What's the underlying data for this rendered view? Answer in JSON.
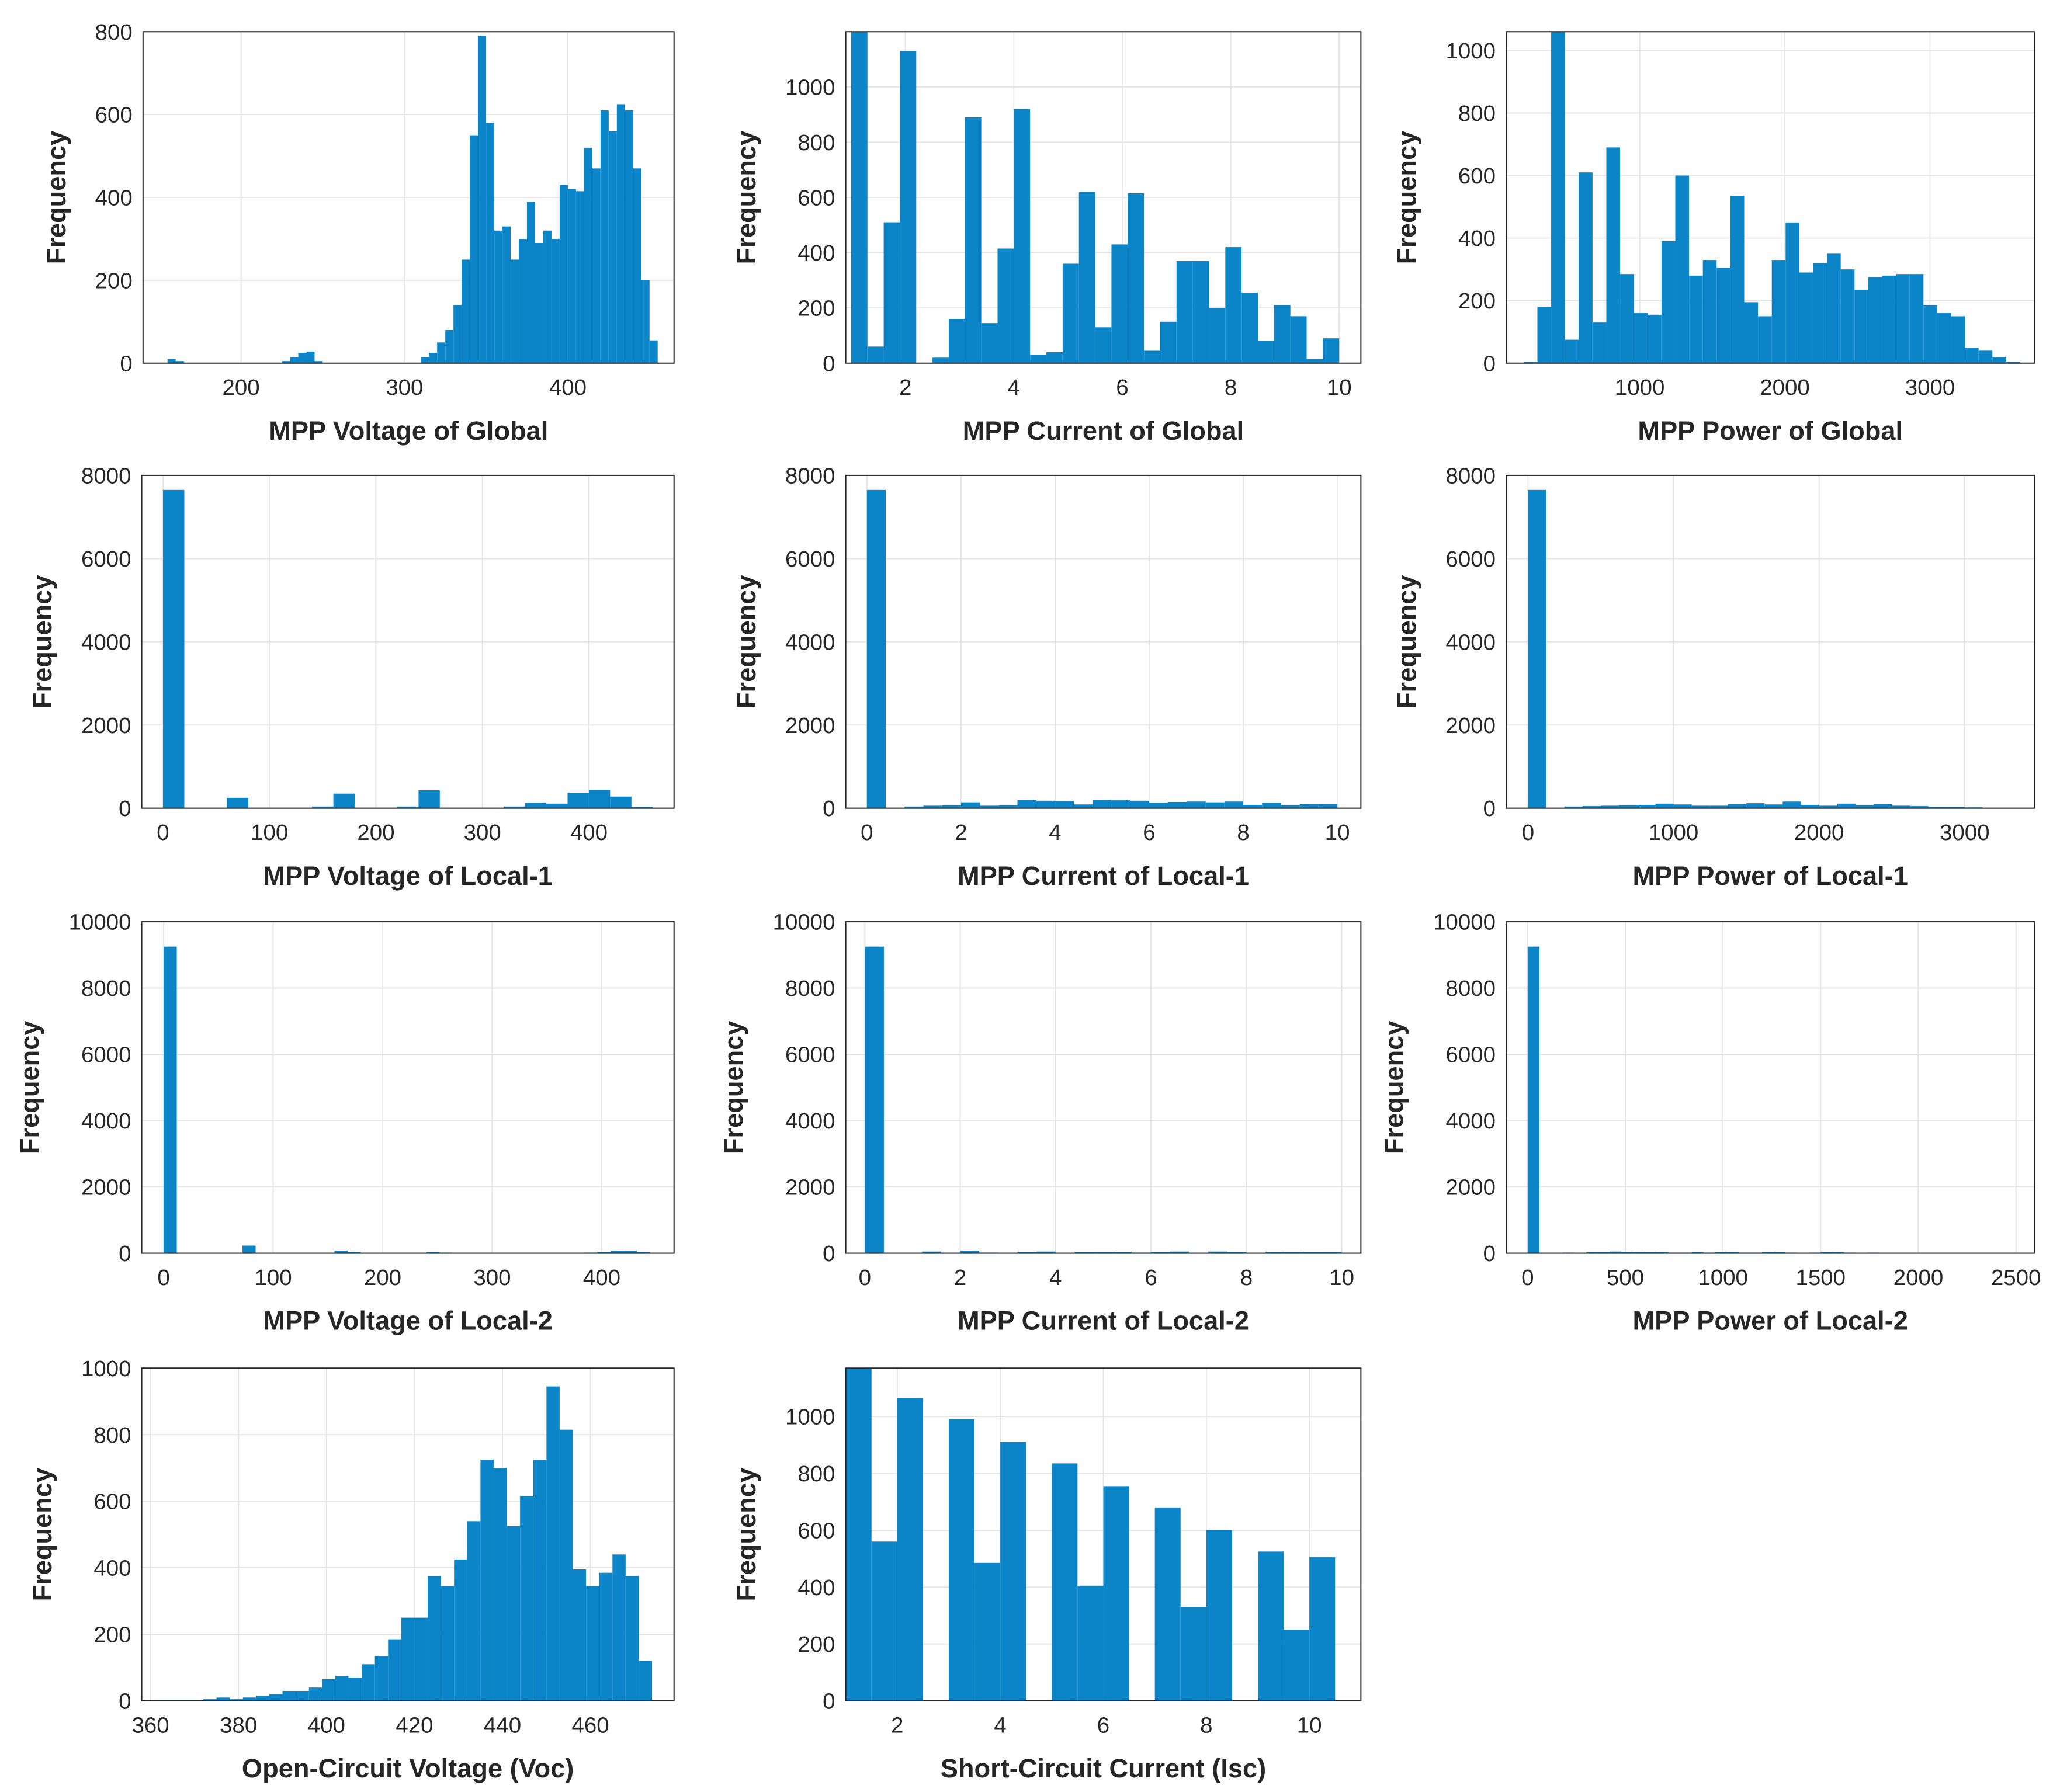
{
  "chart_data": [
    {
      "type": "histogram",
      "x_label": "MPP Voltage of Global",
      "y_label": "Frequency",
      "color": "#0c85c8",
      "grid": true,
      "bins": [
        155,
        160,
        165,
        170,
        175,
        180,
        185,
        190,
        195,
        200,
        205,
        210,
        215,
        220,
        225,
        230,
        235,
        240,
        245,
        250,
        255,
        260,
        265,
        270,
        275,
        280,
        285,
        290,
        295,
        300,
        305,
        310,
        315,
        320,
        325,
        330,
        335,
        340,
        345,
        350,
        355,
        360,
        365,
        370,
        375,
        380,
        385,
        390,
        395,
        400,
        405,
        410,
        415,
        420,
        425,
        430,
        435,
        440,
        445,
        450,
        455
      ],
      "values": [
        10,
        5,
        0,
        0,
        0,
        0,
        0,
        0,
        0,
        0,
        0,
        0,
        0,
        0,
        5,
        15,
        25,
        28,
        5,
        0,
        0,
        0,
        0,
        0,
        0,
        0,
        0,
        0,
        0,
        0,
        0,
        15,
        25,
        50,
        80,
        140,
        250,
        550,
        790,
        580,
        320,
        330,
        250,
        300,
        390,
        290,
        320,
        300,
        430,
        420,
        415,
        520,
        470,
        610,
        560,
        625,
        610,
        470,
        200,
        55
      ],
      "xlim": [
        140,
        465
      ],
      "ylim": [
        0,
        800
      ],
      "xticks": [
        200,
        300,
        400
      ],
      "yticks": [
        0,
        200,
        400,
        600,
        800
      ]
    },
    {
      "type": "histogram",
      "x_label": "MPP Current of Global",
      "y_label": "Frequency",
      "color": "#0c85c8",
      "grid": true,
      "bins": [
        1,
        1.3,
        1.6,
        1.9,
        2.2,
        2.5,
        2.8,
        3.1,
        3.4,
        3.7,
        4,
        4.3,
        4.6,
        4.9,
        5.2,
        5.5,
        5.8,
        6.1,
        6.4,
        6.7,
        7,
        7.3,
        7.6,
        7.9,
        8.2,
        8.5,
        8.8,
        9.1,
        9.4,
        9.7,
        10
      ],
      "values": [
        1250,
        60,
        510,
        1130,
        0,
        20,
        160,
        890,
        145,
        415,
        920,
        30,
        40,
        360,
        620,
        130,
        430,
        615,
        45,
        150,
        370,
        370,
        200,
        420,
        255,
        80,
        210,
        170,
        15,
        90
      ],
      "xlim": [
        0.9,
        10.4
      ],
      "ylim": [
        0,
        1200
      ],
      "xticks": [
        2,
        4,
        6,
        8,
        10
      ],
      "yticks": [
        0,
        200,
        400,
        600,
        800,
        1000
      ]
    },
    {
      "type": "histogram",
      "x_label": "MPP Power of Global",
      "y_label": "Frequency",
      "color": "#0c85c8",
      "grid": true,
      "bins": [
        200,
        295,
        390,
        485,
        580,
        675,
        770,
        865,
        960,
        1055,
        1150,
        1245,
        1340,
        1435,
        1530,
        1625,
        1720,
        1815,
        1910,
        2005,
        2100,
        2195,
        2290,
        2385,
        2480,
        2575,
        2670,
        2765,
        2860,
        2955,
        3050,
        3145,
        3240,
        3335,
        3430,
        3525,
        3620
      ],
      "values": [
        5,
        180,
        1100,
        75,
        610,
        130,
        690,
        285,
        160,
        155,
        390,
        600,
        280,
        330,
        305,
        535,
        195,
        150,
        330,
        450,
        290,
        320,
        350,
        300,
        235,
        275,
        280,
        285,
        285,
        185,
        160,
        150,
        50,
        40,
        20,
        5
      ],
      "xlim": [
        80,
        3720
      ],
      "ylim": [
        0,
        1060
      ],
      "xticks": [
        1000,
        2000,
        3000
      ],
      "yticks": [
        0,
        200,
        400,
        600,
        800,
        1000
      ]
    },
    {
      "type": "histogram",
      "x_label": "MPP Voltage of Local-1",
      "y_label": "Frequency",
      "color": "#0c85c8",
      "grid": true,
      "bins": [
        0,
        20,
        40,
        60,
        80,
        100,
        120,
        140,
        160,
        180,
        200,
        220,
        240,
        260,
        280,
        300,
        320,
        340,
        360,
        380,
        400,
        420,
        440,
        460
      ],
      "values": [
        7650,
        0,
        0,
        250,
        10,
        0,
        0,
        40,
        350,
        10,
        0,
        40,
        430,
        5,
        0,
        10,
        40,
        130,
        110,
        370,
        440,
        280,
        30
      ],
      "xlim": [
        -20,
        480
      ],
      "ylim": [
        0,
        8000
      ],
      "xticks": [
        0,
        100,
        200,
        300,
        400
      ],
      "yticks": [
        0,
        2000,
        4000,
        6000,
        8000
      ]
    },
    {
      "type": "histogram",
      "x_label": "MPP Current of Local-1",
      "y_label": "Frequency",
      "color": "#0c85c8",
      "grid": true,
      "bins": [
        0,
        0.4,
        0.8,
        1.2,
        1.6,
        2,
        2.4,
        2.8,
        3.2,
        3.6,
        4,
        4.4,
        4.8,
        5.2,
        5.6,
        6,
        6.4,
        6.8,
        7.2,
        7.6,
        8,
        8.4,
        8.8,
        9.2,
        9.6,
        10
      ],
      "values": [
        7650,
        0,
        40,
        60,
        70,
        140,
        60,
        70,
        200,
        180,
        170,
        90,
        200,
        190,
        180,
        130,
        150,
        160,
        140,
        160,
        80,
        130,
        70,
        100,
        100
      ],
      "xlim": [
        -0.45,
        10.5
      ],
      "ylim": [
        0,
        8000
      ],
      "xticks": [
        0,
        2,
        4,
        6,
        8,
        10
      ],
      "yticks": [
        0,
        2000,
        4000,
        6000,
        8000
      ]
    },
    {
      "type": "histogram",
      "x_label": "MPP Power of Local-1",
      "y_label": "Frequency",
      "color": "#0c85c8",
      "grid": true,
      "bins": [
        0,
        125,
        250,
        375,
        500,
        625,
        750,
        875,
        1000,
        1125,
        1250,
        1375,
        1500,
        1625,
        1750,
        1875,
        2000,
        2125,
        2250,
        2375,
        2500,
        2625,
        2750,
        2875,
        3000,
        3125,
        3250,
        3375
      ],
      "values": [
        7650,
        0,
        40,
        50,
        60,
        70,
        80,
        110,
        90,
        60,
        60,
        100,
        120,
        90,
        160,
        80,
        60,
        110,
        70,
        100,
        60,
        50,
        30,
        30,
        20,
        10,
        5
      ],
      "xlim": [
        -150,
        3480
      ],
      "ylim": [
        0,
        8000
      ],
      "xticks": [
        0,
        1000,
        2000,
        3000
      ],
      "yticks": [
        0,
        2000,
        4000,
        6000,
        8000
      ]
    },
    {
      "type": "histogram",
      "x_label": "MPP Voltage of Local-2",
      "y_label": "Frequency",
      "color": "#0c85c8",
      "grid": true,
      "bins": [
        0,
        12,
        24,
        36,
        48,
        60,
        72,
        84,
        96,
        108,
        120,
        132,
        144,
        156,
        168,
        180,
        192,
        204,
        216,
        228,
        240,
        252,
        264,
        276,
        288,
        300,
        312,
        324,
        336,
        348,
        360,
        372,
        384,
        396,
        408,
        420,
        432,
        444,
        456
      ],
      "values": [
        9250,
        0,
        0,
        0,
        0,
        10,
        230,
        10,
        0,
        0,
        0,
        0,
        10,
        80,
        40,
        0,
        0,
        0,
        0,
        10,
        30,
        20,
        0,
        0,
        0,
        0,
        0,
        10,
        10,
        10,
        10,
        10,
        20,
        40,
        80,
        70,
        30,
        10
      ],
      "xlim": [
        -20,
        466
      ],
      "ylim": [
        0,
        10000
      ],
      "xticks": [
        0,
        100,
        200,
        300,
        400
      ],
      "yticks": [
        0,
        2000,
        4000,
        6000,
        8000,
        10000
      ]
    },
    {
      "type": "histogram",
      "x_label": "MPP Current of Local-2",
      "y_label": "Frequency",
      "color": "#0c85c8",
      "grid": true,
      "bins": [
        0,
        0.4,
        0.8,
        1.2,
        1.6,
        2,
        2.4,
        2.8,
        3.2,
        3.6,
        4,
        4.4,
        4.8,
        5.2,
        5.6,
        6,
        6.4,
        6.8,
        7.2,
        7.6,
        8,
        8.4,
        8.8,
        9.2,
        9.6,
        10
      ],
      "values": [
        9250,
        0,
        0,
        50,
        0,
        80,
        20,
        0,
        40,
        50,
        0,
        40,
        30,
        40,
        20,
        30,
        50,
        0,
        50,
        30,
        0,
        40,
        30,
        40,
        30
      ],
      "xlim": [
        -0.4,
        10.4
      ],
      "ylim": [
        0,
        10000
      ],
      "xticks": [
        0,
        2,
        4,
        6,
        8,
        10
      ],
      "yticks": [
        0,
        2000,
        4000,
        6000,
        8000,
        10000
      ]
    },
    {
      "type": "histogram",
      "x_label": "MPP Power of Local-2",
      "y_label": "Frequency",
      "color": "#0c85c8",
      "grid": true,
      "bins": [
        0,
        60,
        120,
        180,
        240,
        300,
        360,
        420,
        480,
        540,
        600,
        660,
        720,
        780,
        840,
        900,
        960,
        1020,
        1080,
        1140,
        1200,
        1260,
        1320,
        1380,
        1440,
        1500,
        1560,
        1620,
        1680,
        1740,
        1800,
        1860,
        1920,
        1980,
        2040,
        2100,
        2160,
        2220,
        2280,
        2340,
        2400,
        2460
      ],
      "values": [
        9250,
        0,
        0,
        20,
        10,
        30,
        30,
        50,
        40,
        30,
        40,
        30,
        20,
        20,
        30,
        20,
        40,
        30,
        20,
        20,
        30,
        40,
        20,
        10,
        20,
        40,
        30,
        20,
        10,
        20,
        10,
        10,
        10,
        10,
        5,
        5,
        5,
        5,
        5,
        0,
        0
      ],
      "xlim": [
        -110,
        2595
      ],
      "ylim": [
        0,
        10000
      ],
      "xticks": [
        0,
        500,
        1000,
        1500,
        2000,
        2500
      ],
      "yticks": [
        0,
        2000,
        4000,
        6000,
        8000,
        10000
      ]
    },
    {
      "type": "histogram",
      "x_label": "Open-Circuit Voltage (Voc)",
      "y_label": "Frequency",
      "color": "#0c85c8",
      "grid": true,
      "bins": [
        360,
        363,
        366,
        369,
        372,
        375,
        378,
        381,
        384,
        387,
        390,
        393,
        396,
        399,
        402,
        405,
        408,
        411,
        414,
        417,
        420,
        423,
        426,
        429,
        432,
        435,
        438,
        441,
        444,
        447,
        450,
        453,
        456,
        459,
        462,
        465,
        468,
        471,
        474
      ],
      "values": [
        2,
        2,
        2,
        2,
        5,
        10,
        5,
        10,
        15,
        20,
        30,
        30,
        40,
        65,
        75,
        70,
        110,
        135,
        185,
        250,
        250,
        375,
        345,
        425,
        540,
        725,
        700,
        525,
        615,
        725,
        945,
        815,
        395,
        345,
        385,
        440,
        375,
        120
      ],
      "xlim": [
        358,
        479
      ],
      "ylim": [
        0,
        1000
      ],
      "xticks": [
        360,
        380,
        400,
        420,
        440,
        460
      ],
      "yticks": [
        0,
        200,
        400,
        600,
        800,
        1000
      ]
    },
    {
      "type": "histogram",
      "x_label": "Short-Circuit Current (Isc)",
      "y_label": "Frequency",
      "color": "#0c85c8",
      "grid": true,
      "bins": [
        1,
        1.5,
        2,
        2.5,
        3,
        3.5,
        4,
        4.5,
        5,
        5.5,
        6,
        6.5,
        7,
        7.5,
        8,
        8.5,
        9,
        9.5,
        10,
        10.5
      ],
      "values": [
        1180,
        560,
        1065,
        0,
        990,
        485,
        910,
        0,
        835,
        405,
        755,
        0,
        680,
        330,
        600,
        0,
        525,
        250,
        505
      ],
      "xlim": [
        1,
        11
      ],
      "ylim": [
        0,
        1170
      ],
      "xticks": [
        2,
        4,
        6,
        8,
        10
      ],
      "yticks": [
        0,
        200,
        400,
        600,
        800,
        1000
      ]
    }
  ]
}
